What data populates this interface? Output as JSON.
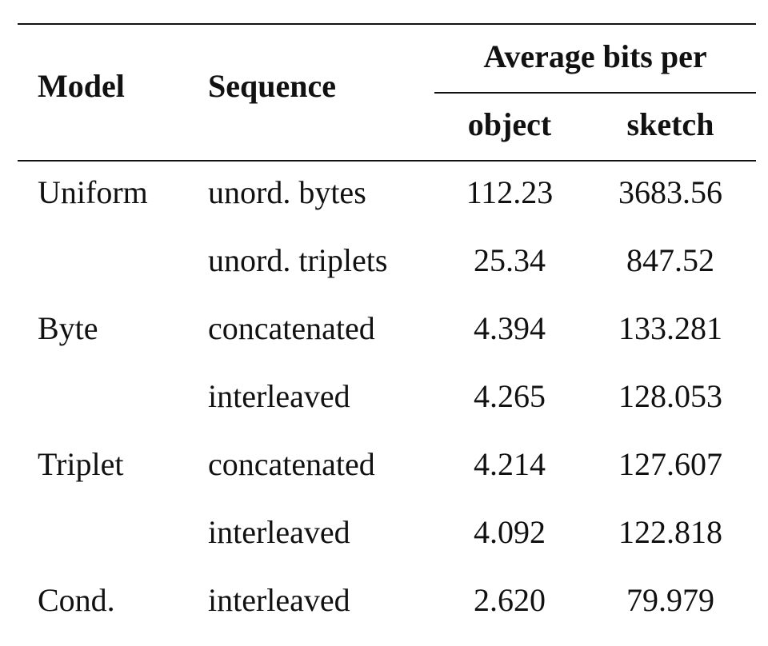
{
  "table": {
    "header": {
      "model": "Model",
      "sequence": "Sequence",
      "group": "Average bits per",
      "object": "object",
      "sketch": "sketch"
    },
    "groups": [
      {
        "model": "Uniform",
        "rows": [
          {
            "sequence": "unord. bytes",
            "object": "112.23",
            "sketch": "3683.56"
          },
          {
            "sequence": "unord. triplets",
            "object": "25.34",
            "sketch": "847.52"
          }
        ]
      },
      {
        "model": "Byte",
        "rows": [
          {
            "sequence": "concatenated",
            "object": "4.394",
            "sketch": "133.281"
          },
          {
            "sequence": "interleaved",
            "object": "4.265",
            "sketch": "128.053"
          }
        ]
      },
      {
        "model": "Triplet",
        "rows": [
          {
            "sequence": "concatenated",
            "object": "4.214",
            "sketch": "127.607"
          },
          {
            "sequence": "interleaved",
            "object": "4.092",
            "sketch": "122.818"
          }
        ]
      },
      {
        "model": "Cond.",
        "rows": [
          {
            "sequence": "interleaved",
            "object": "2.620",
            "sketch": "79.979"
          }
        ]
      }
    ]
  }
}
